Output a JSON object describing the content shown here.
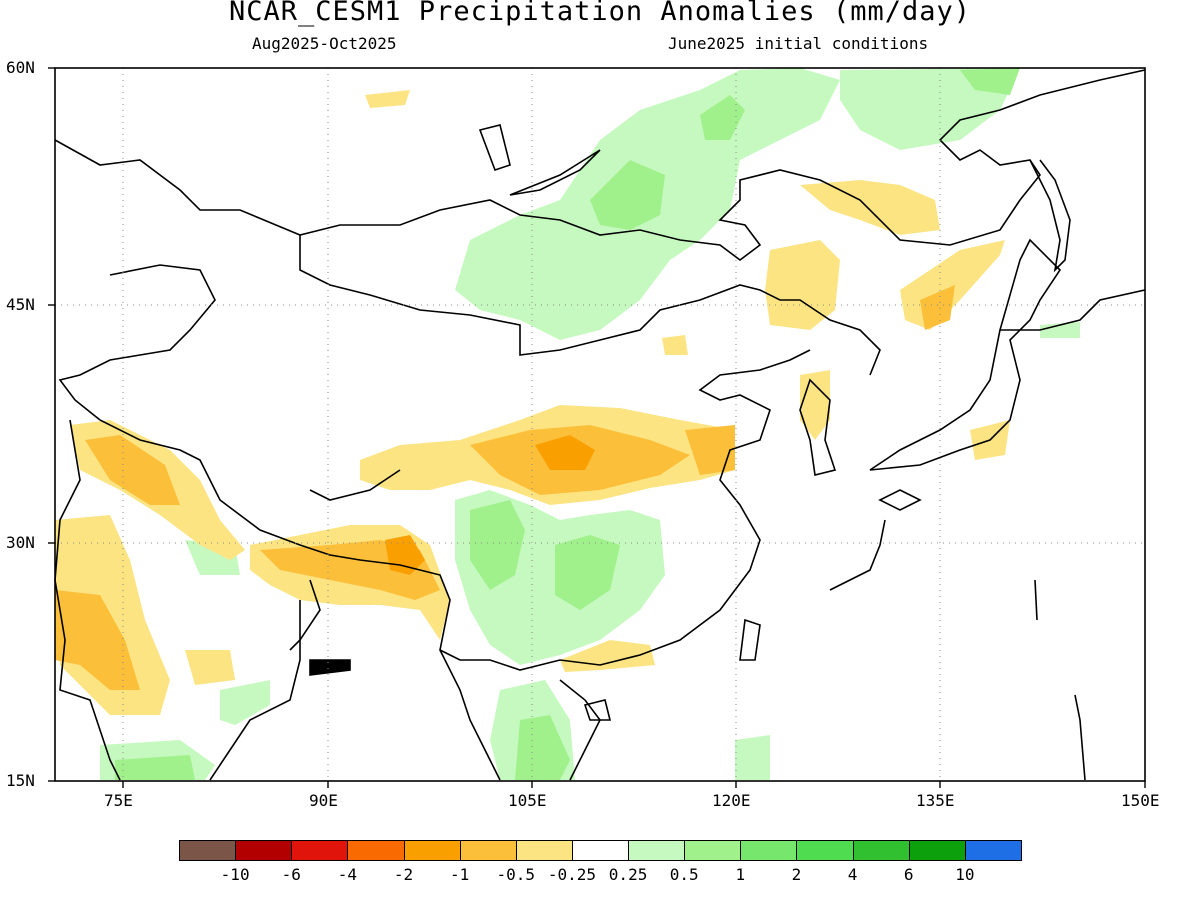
{
  "title": "NCAR_CESM1 Precipitation Anomalies (mm/day)",
  "subtitle_left": "Aug2025-Oct2025",
  "subtitle_right": "June2025 initial conditions",
  "lat_labels": [
    "60N",
    "45N",
    "30N",
    "15N"
  ],
  "lon_labels": [
    "75E",
    "90E",
    "105E",
    "120E",
    "135E",
    "150E"
  ],
  "grid": true,
  "colorbar": {
    "colors": [
      "#7b5548",
      "#b20000",
      "#e1140b",
      "#f96a00",
      "#f9a000",
      "#fbbf3a",
      "#fce482",
      "#ffffff",
      "#c6f9bf",
      "#a0f08c",
      "#76e66c",
      "#50dc50",
      "#30c030",
      "#0da00d",
      "#1e6fe6"
    ],
    "labels": [
      "-10",
      "-6",
      "-4",
      "-2",
      "-1",
      "-0.5",
      "-0.25",
      "0.25",
      "0.5",
      "1",
      "2",
      "4",
      "6",
      "10"
    ]
  }
}
